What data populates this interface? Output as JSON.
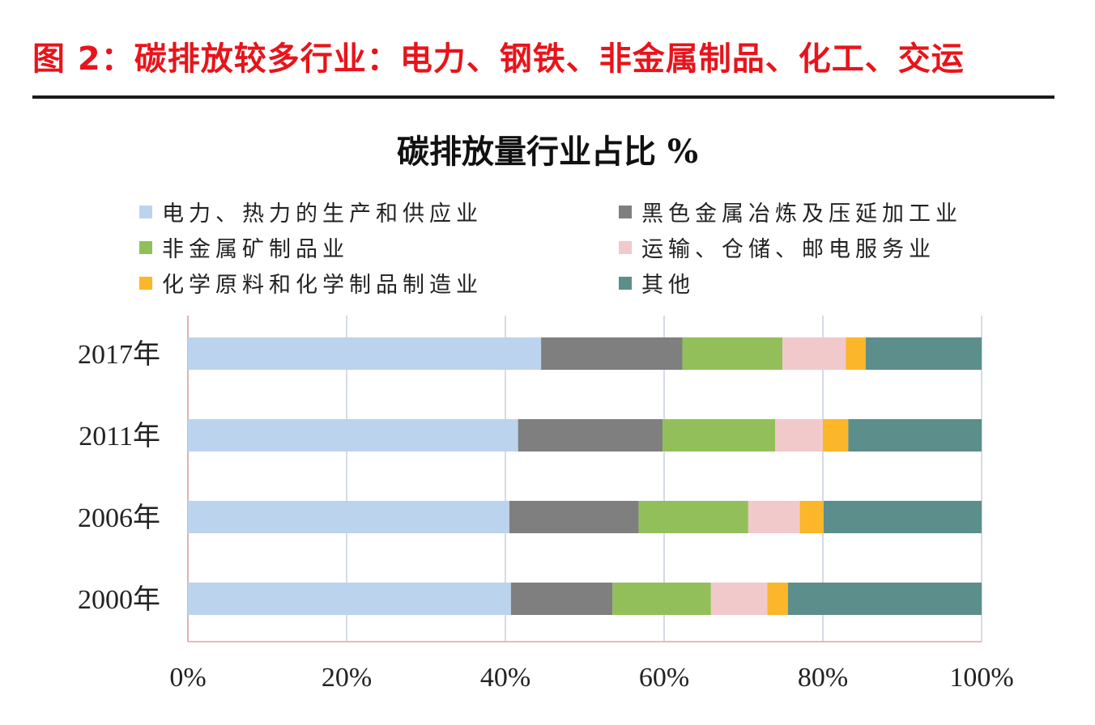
{
  "figure": {
    "title": "图 2：碳排放较多行业：电力、钢铁、非金属制品、化工、交运"
  },
  "chart_data": {
    "type": "bar",
    "orientation": "horizontal",
    "stacked": true,
    "title": "碳排放量行业占比 %",
    "categories": [
      "2017年",
      "2011年",
      "2006年",
      "2000年"
    ],
    "series": [
      {
        "name": "电力、热力的生产和供应业",
        "color": "#bcd3ee",
        "values": [
          44.5,
          41.6,
          40.5,
          40.7
        ]
      },
      {
        "name": "黑色金属冶炼及压延加工业",
        "color": "#7f7f7f",
        "values": [
          17.8,
          18.2,
          16.3,
          12.8
        ]
      },
      {
        "name": "非金属矿制品业",
        "color": "#92bf5a",
        "values": [
          12.6,
          14.2,
          13.8,
          12.4
        ]
      },
      {
        "name": "运输、仓储、邮电服务业",
        "color": "#f2c9cb",
        "values": [
          8.0,
          6.0,
          6.5,
          7.1
        ]
      },
      {
        "name": "化学原料和化学制品制造业",
        "color": "#fbb62a",
        "values": [
          2.5,
          3.2,
          3.0,
          2.6
        ]
      },
      {
        "name": "其他",
        "color": "#5c8e8c",
        "values": [
          14.6,
          16.8,
          19.9,
          24.4
        ]
      }
    ],
    "xlim": [
      0,
      100
    ],
    "xticks": [
      "0%",
      "20%",
      "40%",
      "60%",
      "80%",
      "100%"
    ],
    "grid": true,
    "legend_position": "top"
  }
}
